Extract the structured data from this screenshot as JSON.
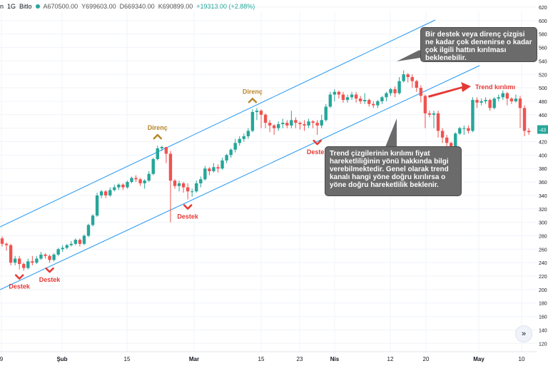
{
  "header": {
    "symbol": "n",
    "interval": "1G",
    "exchange": "Bitlo",
    "open": "A670500.00",
    "high": "Y699603.00",
    "low": "D669340.00",
    "close": "K690899.00",
    "change": "+19313.00 (+2.88%)",
    "status_color": "#26a69a"
  },
  "callouts": {
    "top": "Bir destek veya direnç çizgisi ne kadar çok denenirse o kadar çok ilgili hattın kırılması beklenebilir.",
    "middle": "Trend çizgilerinin kırılımı fiyat hareketliliğinin yönü hakkında bilgi verebilmektedir. Genel olarak trend kanalı hangi yöne doğru kırılırsa o yöne doğru hareketlilik beklenir."
  },
  "scroll_icon": "double-chevron-right-icon",
  "chart_data": {
    "type": "candlestick",
    "up_color": "#26a69a",
    "down_color": "#ef5350",
    "y_ticks": [
      "620",
      "600",
      "580",
      "560",
      "540",
      "520",
      "500",
      "480",
      "460",
      "440",
      "420",
      "400",
      "380",
      "360",
      "340",
      "320",
      "300",
      "280",
      "260",
      "240",
      "220",
      "200",
      "180",
      "160",
      "140",
      "120"
    ],
    "current_price_label": "-43",
    "x_ticks": [
      "9",
      "Şub",
      "15",
      "Mar",
      "15",
      "23",
      "Nis",
      "12",
      "20",
      "May",
      "10"
    ],
    "candles": [
      [
        276,
        268,
        279,
        264
      ],
      [
        268,
        266,
        270,
        258
      ],
      [
        266,
        240,
        268,
        236
      ],
      [
        240,
        246,
        250,
        236
      ],
      [
        246,
        238,
        250,
        230
      ],
      [
        238,
        232,
        240,
        228
      ],
      [
        232,
        242,
        246,
        230
      ],
      [
        242,
        240,
        250,
        236
      ],
      [
        240,
        246,
        250,
        238
      ],
      [
        246,
        252,
        256,
        244
      ],
      [
        252,
        250,
        254,
        246
      ],
      [
        250,
        244,
        252,
        240
      ],
      [
        244,
        252,
        254,
        242
      ],
      [
        252,
        260,
        262,
        250
      ],
      [
        260,
        262,
        266,
        256
      ],
      [
        262,
        266,
        268,
        260
      ],
      [
        266,
        268,
        272,
        264
      ],
      [
        268,
        274,
        276,
        266
      ],
      [
        274,
        268,
        276,
        264
      ],
      [
        268,
        280,
        282,
        266
      ],
      [
        280,
        296,
        298,
        278
      ],
      [
        296,
        310,
        312,
        294
      ],
      [
        310,
        340,
        344,
        308
      ],
      [
        340,
        346,
        348,
        336
      ],
      [
        346,
        340,
        348,
        336
      ],
      [
        340,
        348,
        352,
        338
      ],
      [
        348,
        352,
        356,
        346
      ],
      [
        352,
        356,
        358,
        348
      ],
      [
        356,
        352,
        358,
        348
      ],
      [
        352,
        360,
        362,
        350
      ],
      [
        360,
        366,
        368,
        358
      ],
      [
        366,
        364,
        370,
        360
      ],
      [
        364,
        358,
        366,
        354
      ],
      [
        358,
        362,
        364,
        350
      ],
      [
        362,
        372,
        376,
        360
      ],
      [
        372,
        394,
        396,
        370
      ],
      [
        394,
        410,
        414,
        392
      ],
      [
        410,
        412,
        414,
        406
      ],
      [
        412,
        402,
        410,
        388
      ],
      [
        402,
        362,
        406,
        300
      ],
      [
        362,
        354,
        364,
        350
      ],
      [
        354,
        358,
        362,
        346
      ],
      [
        358,
        352,
        360,
        344
      ],
      [
        352,
        346,
        358,
        334
      ],
      [
        346,
        346,
        350,
        338
      ],
      [
        346,
        358,
        362,
        344
      ],
      [
        358,
        364,
        368,
        352
      ],
      [
        364,
        380,
        384,
        362
      ],
      [
        380,
        376,
        382,
        370
      ],
      [
        376,
        382,
        388,
        374
      ],
      [
        382,
        380,
        386,
        374
      ],
      [
        380,
        392,
        396,
        378
      ],
      [
        392,
        400,
        402,
        388
      ],
      [
        400,
        408,
        410,
        396
      ],
      [
        408,
        418,
        424,
        404
      ],
      [
        418,
        424,
        428,
        414
      ],
      [
        424,
        428,
        432,
        420
      ],
      [
        428,
        436,
        440,
        424
      ],
      [
        436,
        464,
        468,
        434
      ],
      [
        464,
        466,
        470,
        452
      ],
      [
        466,
        460,
        468,
        440
      ],
      [
        460,
        448,
        462,
        440
      ],
      [
        448,
        444,
        452,
        434
      ],
      [
        444,
        440,
        446,
        430
      ],
      [
        440,
        446,
        450,
        436
      ],
      [
        446,
        448,
        454,
        440
      ],
      [
        448,
        444,
        452,
        440
      ],
      [
        444,
        452,
        466,
        440
      ],
      [
        452,
        448,
        456,
        440
      ],
      [
        448,
        446,
        450,
        438
      ],
      [
        446,
        444,
        452,
        436
      ],
      [
        444,
        450,
        454,
        440
      ],
      [
        450,
        448,
        452,
        440
      ],
      [
        448,
        444,
        452,
        430
      ],
      [
        444,
        452,
        460,
        440
      ],
      [
        452,
        472,
        476,
        450
      ],
      [
        472,
        490,
        494,
        470
      ],
      [
        490,
        494,
        498,
        480
      ],
      [
        494,
        490,
        496,
        484
      ],
      [
        490,
        482,
        494,
        478
      ],
      [
        482,
        486,
        490,
        478
      ],
      [
        486,
        490,
        494,
        482
      ],
      [
        490,
        484,
        494,
        478
      ],
      [
        484,
        480,
        488,
        476
      ],
      [
        480,
        482,
        492,
        476
      ],
      [
        482,
        476,
        484,
        472
      ],
      [
        476,
        474,
        480,
        470
      ],
      [
        474,
        480,
        482,
        470
      ],
      [
        480,
        486,
        488,
        476
      ],
      [
        486,
        492,
        494,
        480
      ],
      [
        492,
        498,
        500,
        488
      ],
      [
        498,
        492,
        502,
        486
      ],
      [
        492,
        510,
        516,
        490
      ],
      [
        510,
        520,
        526,
        508
      ],
      [
        520,
        516,
        522,
        508
      ],
      [
        516,
        510,
        520,
        500
      ],
      [
        510,
        500,
        512,
        494
      ],
      [
        500,
        488,
        504,
        478
      ],
      [
        488,
        462,
        490,
        440
      ],
      [
        462,
        460,
        466,
        456
      ],
      [
        460,
        462,
        466,
        440
      ],
      [
        462,
        436,
        466,
        426
      ],
      [
        436,
        426,
        440,
        418
      ],
      [
        426,
        418,
        430,
        412
      ],
      [
        418,
        404,
        420,
        400
      ],
      [
        404,
        432,
        434,
        402
      ],
      [
        432,
        440,
        442,
        430
      ],
      [
        440,
        440,
        444,
        430
      ],
      [
        440,
        436,
        444,
        432
      ],
      [
        436,
        482,
        486,
        434
      ],
      [
        482,
        478,
        486,
        470
      ],
      [
        478,
        480,
        484,
        474
      ],
      [
        480,
        482,
        486,
        476
      ],
      [
        482,
        470,
        484,
        466
      ],
      [
        470,
        484,
        486,
        468
      ],
      [
        484,
        486,
        490,
        480
      ],
      [
        486,
        492,
        496,
        482
      ],
      [
        492,
        484,
        494,
        474
      ],
      [
        484,
        480,
        486,
        476
      ],
      [
        480,
        484,
        490,
        478
      ],
      [
        484,
        470,
        488,
        440
      ],
      [
        470,
        436,
        474,
        428
      ],
      [
        436,
        434,
        440,
        430
      ]
    ],
    "annotations": [
      {
        "type": "support",
        "label": "Destek",
        "candle": 4
      },
      {
        "type": "support",
        "label": "Destek",
        "candle": 11
      },
      {
        "type": "resistance",
        "label": "Direnç",
        "candle": 36
      },
      {
        "type": "support",
        "label": "Destek",
        "candle": 43
      },
      {
        "type": "resistance",
        "label": "Direnç",
        "candle": 58
      },
      {
        "type": "support",
        "label": "Destek",
        "candle": 73
      },
      {
        "type": "breakout",
        "label": "Trend kırılımı",
        "candle": 100
      }
    ],
    "channel_color": "#2196f3",
    "breakout_color": "#e53935",
    "support_color": "#e53935",
    "resistance_color": "#b8862b"
  }
}
